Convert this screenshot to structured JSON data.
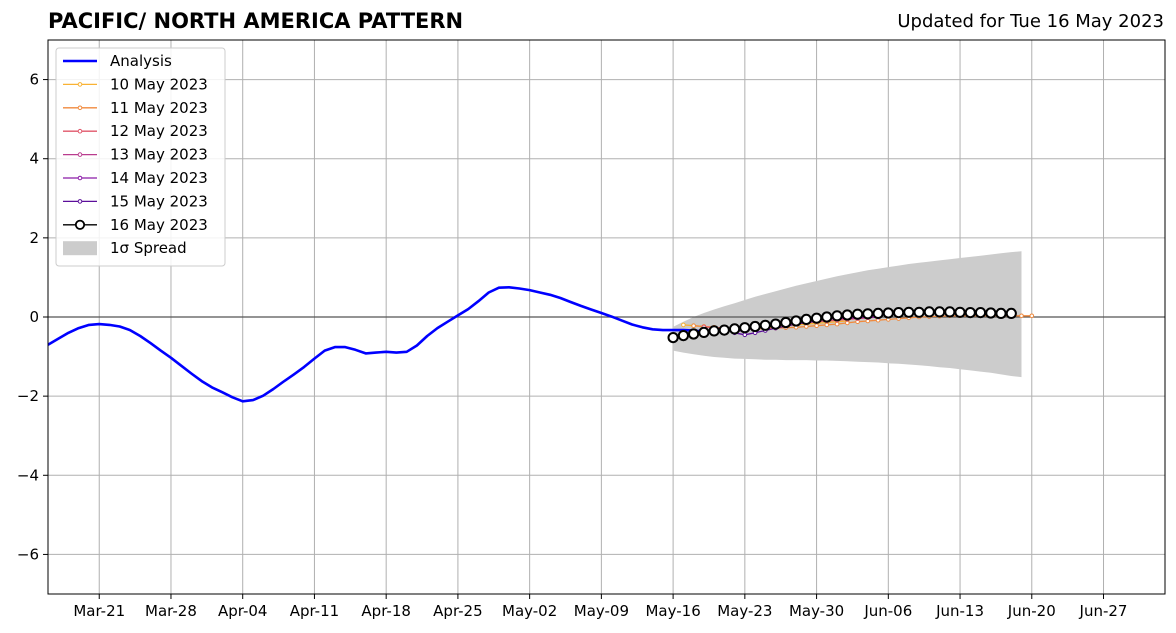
{
  "title": "PACIFIC/ NORTH AMERICA PATTERN",
  "updated": "Updated for Tue 16 May 2023",
  "chart_data": {
    "type": "line",
    "x_unit": "date",
    "xlim": [
      "2023-03-16",
      "2023-07-03"
    ],
    "ylim": [
      -7,
      7
    ],
    "y_ticks": [
      -6,
      -4,
      -2,
      0,
      2,
      4,
      6
    ],
    "y_tick_labels": [
      "−6",
      "−4",
      "−2",
      "0",
      "2",
      "4",
      "6"
    ],
    "x_ticks": [
      "2023-03-21",
      "2023-03-28",
      "2023-04-04",
      "2023-04-11",
      "2023-04-18",
      "2023-04-25",
      "2023-05-02",
      "2023-05-09",
      "2023-05-16",
      "2023-05-23",
      "2023-05-30",
      "2023-06-06",
      "2023-06-13",
      "2023-06-20",
      "2023-06-27"
    ],
    "x_tick_labels": [
      "Mar-21",
      "Mar-28",
      "Apr-04",
      "Apr-11",
      "Apr-18",
      "Apr-25",
      "May-02",
      "May-09",
      "May-16",
      "May-23",
      "May-30",
      "Jun-06",
      "Jun-13",
      "Jun-20",
      "Jun-27"
    ],
    "grid": true,
    "legend_position": "top-left",
    "analysis": {
      "name": "Analysis",
      "color": "#0000ff",
      "points": [
        [
          "2023-03-16",
          -0.7
        ],
        [
          "2023-03-17",
          -0.55
        ],
        [
          "2023-03-18",
          -0.4
        ],
        [
          "2023-03-19",
          -0.28
        ],
        [
          "2023-03-20",
          -0.2
        ],
        [
          "2023-03-21",
          -0.18
        ],
        [
          "2023-03-22",
          -0.2
        ],
        [
          "2023-03-23",
          -0.24
        ],
        [
          "2023-03-24",
          -0.33
        ],
        [
          "2023-03-25",
          -0.48
        ],
        [
          "2023-03-26",
          -0.66
        ],
        [
          "2023-03-27",
          -0.85
        ],
        [
          "2023-03-28",
          -1.03
        ],
        [
          "2023-03-29",
          -1.23
        ],
        [
          "2023-03-30",
          -1.43
        ],
        [
          "2023-03-31",
          -1.62
        ],
        [
          "2023-04-01",
          -1.78
        ],
        [
          "2023-04-02",
          -1.9
        ],
        [
          "2023-04-03",
          -2.03
        ],
        [
          "2023-04-04",
          -2.13
        ],
        [
          "2023-04-05",
          -2.1
        ],
        [
          "2023-04-06",
          -1.99
        ],
        [
          "2023-04-07",
          -1.82
        ],
        [
          "2023-04-08",
          -1.63
        ],
        [
          "2023-04-09",
          -1.45
        ],
        [
          "2023-04-10",
          -1.26
        ],
        [
          "2023-04-11",
          -1.05
        ],
        [
          "2023-04-12",
          -0.85
        ],
        [
          "2023-04-13",
          -0.76
        ],
        [
          "2023-04-14",
          -0.76
        ],
        [
          "2023-04-15",
          -0.83
        ],
        [
          "2023-04-16",
          -0.92
        ],
        [
          "2023-04-17",
          -0.9
        ],
        [
          "2023-04-18",
          -0.88
        ],
        [
          "2023-04-19",
          -0.9
        ],
        [
          "2023-04-20",
          -0.88
        ],
        [
          "2023-04-21",
          -0.72
        ],
        [
          "2023-04-22",
          -0.48
        ],
        [
          "2023-04-23",
          -0.28
        ],
        [
          "2023-04-24",
          -0.12
        ],
        [
          "2023-04-25",
          0.04
        ],
        [
          "2023-04-26",
          0.2
        ],
        [
          "2023-04-27",
          0.4
        ],
        [
          "2023-04-28",
          0.62
        ],
        [
          "2023-04-29",
          0.74
        ],
        [
          "2023-04-30",
          0.75
        ],
        [
          "2023-05-01",
          0.72
        ],
        [
          "2023-05-02",
          0.68
        ],
        [
          "2023-05-03",
          0.62
        ],
        [
          "2023-05-04",
          0.56
        ],
        [
          "2023-05-05",
          0.48
        ],
        [
          "2023-05-06",
          0.38
        ],
        [
          "2023-05-07",
          0.28
        ],
        [
          "2023-05-08",
          0.19
        ],
        [
          "2023-05-09",
          0.1
        ],
        [
          "2023-05-10",
          0.01
        ],
        [
          "2023-05-11",
          -0.09
        ],
        [
          "2023-05-12",
          -0.19
        ],
        [
          "2023-05-13",
          -0.26
        ],
        [
          "2023-05-14",
          -0.31
        ],
        [
          "2023-05-15",
          -0.33
        ],
        [
          "2023-05-16",
          -0.33
        ],
        [
          "2023-05-17",
          -0.33
        ],
        [
          "2023-05-18",
          -0.34
        ],
        [
          "2023-05-19",
          -0.37
        ],
        [
          "2023-05-20",
          -0.41
        ]
      ]
    },
    "forecasts": [
      {
        "name": "10 May 2023",
        "color": "#f9b233",
        "start": "2023-05-17",
        "step_days": 1,
        "values": [
          -0.2,
          -0.22,
          -0.24,
          -0.26,
          -0.28,
          -0.3,
          -0.3,
          -0.28,
          -0.26,
          -0.24,
          -0.22,
          -0.2,
          -0.18,
          -0.16,
          -0.14,
          -0.12,
          -0.1
        ]
      },
      {
        "name": "11 May 2023",
        "color": "#f08a3e",
        "start": "2023-05-18",
        "step_days": 1,
        "values": [
          -0.22,
          -0.24,
          -0.26,
          -0.28,
          -0.3,
          -0.31,
          -0.3,
          -0.29,
          -0.28,
          -0.27,
          -0.26,
          -0.24,
          -0.22,
          -0.2,
          -0.18,
          -0.15,
          -0.12,
          -0.1,
          -0.08,
          -0.06,
          -0.04,
          -0.02,
          0.0,
          0.01,
          0.02,
          0.03,
          0.03,
          0.03,
          0.03,
          0.03,
          0.03,
          0.03,
          0.03,
          0.03
        ]
      },
      {
        "name": "12 May 2023",
        "color": "#e0566a",
        "start": "2023-05-19",
        "step_days": 1,
        "values": [
          -0.25,
          -0.27,
          -0.28,
          -0.28,
          -0.27,
          -0.25,
          -0.23,
          -0.21,
          -0.19,
          -0.17,
          -0.15,
          -0.12,
          -0.1,
          -0.08,
          -0.06,
          -0.04,
          -0.02,
          0.0
        ]
      },
      {
        "name": "13 May 2023",
        "color": "#b93c8e",
        "start": "2023-05-20",
        "step_days": 1,
        "values": [
          -0.28,
          -0.3,
          -0.28,
          -0.25,
          -0.22,
          -0.19,
          -0.16,
          -0.13,
          -0.11,
          -0.09,
          -0.07,
          -0.05,
          -0.04,
          -0.03,
          -0.02,
          -0.01,
          0.0
        ]
      },
      {
        "name": "14 May 2023",
        "color": "#8b1aa8",
        "start": "2023-05-21",
        "step_days": 1,
        "values": [
          -0.3,
          -0.38,
          -0.33,
          -0.28,
          -0.24,
          -0.2,
          -0.17,
          -0.14,
          -0.11,
          -0.08,
          -0.06,
          -0.04,
          -0.03,
          -0.02,
          -0.01,
          0.0
        ]
      },
      {
        "name": "15 May 2023",
        "color": "#5b0e9a",
        "start": "2023-05-22",
        "step_days": 1,
        "values": [
          -0.4,
          -0.45,
          -0.4,
          -0.34,
          -0.28,
          -0.23,
          -0.18,
          -0.14,
          -0.1
        ]
      },
      {
        "name": "16 May 2023",
        "color": "#000000",
        "start": "2023-05-16",
        "step_days": 1,
        "values": [
          -0.52,
          -0.47,
          -0.43,
          -0.39,
          -0.35,
          -0.33,
          -0.3,
          -0.27,
          -0.24,
          -0.21,
          -0.18,
          -0.14,
          -0.1,
          -0.06,
          -0.03,
          0.0,
          0.03,
          0.05,
          0.07,
          0.08,
          0.09,
          0.1,
          0.11,
          0.12,
          0.12,
          0.13,
          0.13,
          0.13,
          0.12,
          0.11,
          0.11,
          0.1,
          0.09,
          0.09
        ]
      }
    ],
    "spread": {
      "name": "1σ Spread",
      "color": "#cccccc",
      "start": "2023-05-16",
      "step_days": 1,
      "upper": [
        -0.25,
        -0.12,
        0.0,
        0.1,
        0.19,
        0.27,
        0.35,
        0.43,
        0.51,
        0.58,
        0.65,
        0.72,
        0.79,
        0.85,
        0.91,
        0.97,
        1.03,
        1.08,
        1.13,
        1.18,
        1.22,
        1.26,
        1.3,
        1.34,
        1.37,
        1.4,
        1.43,
        1.46,
        1.49,
        1.52,
        1.55,
        1.58,
        1.61,
        1.64,
        1.66
      ],
      "lower": [
        -0.85,
        -0.9,
        -0.94,
        -0.98,
        -1.01,
        -1.03,
        -1.05,
        -1.06,
        -1.07,
        -1.08,
        -1.08,
        -1.09,
        -1.09,
        -1.09,
        -1.1,
        -1.1,
        -1.11,
        -1.12,
        -1.13,
        -1.14,
        -1.15,
        -1.17,
        -1.18,
        -1.2,
        -1.22,
        -1.24,
        -1.27,
        -1.29,
        -1.32,
        -1.35,
        -1.38,
        -1.41,
        -1.45,
        -1.49,
        -1.52
      ]
    }
  }
}
